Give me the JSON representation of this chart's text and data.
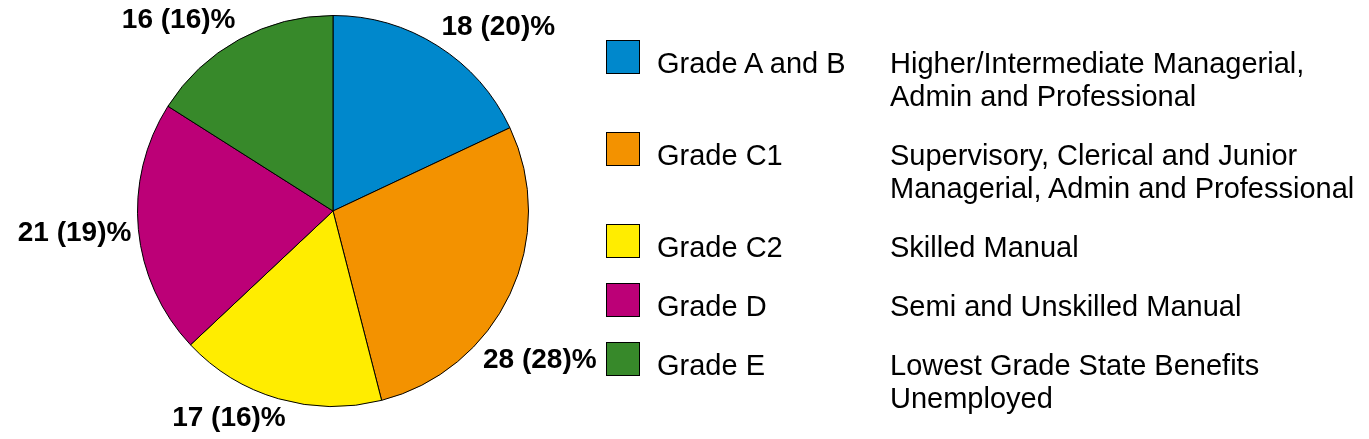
{
  "chart_data": {
    "type": "pie",
    "categories": [
      "Grade A and B",
      "Grade C1",
      "Grade C2",
      "Grade D",
      "Grade E"
    ],
    "values": [
      18,
      28,
      17,
      21,
      16
    ],
    "colors": [
      "#0088cc",
      "#f39200",
      "#ffed00",
      "#bc0077",
      "#37892a"
    ],
    "value_labels": [
      "18 (20)%",
      "28 (28)%",
      "17 (16)%",
      "21 (19)%",
      "16 (16)%"
    ],
    "annotations": [
      "Higher/Intermediate Managerial, Admin and Professional",
      "Supervisory, Clerical and Junior Managerial, Admin and Professional",
      "Skilled Manual",
      "Semi and Unskilled Manual",
      "Lowest Grade State Benefits Unemployed"
    ],
    "legend": "right"
  }
}
